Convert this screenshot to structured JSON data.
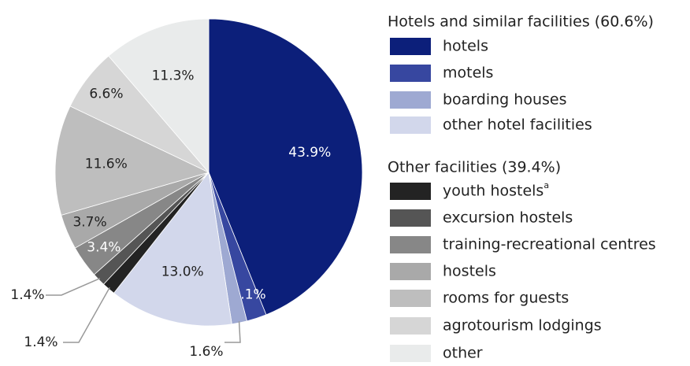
{
  "chart_data": {
    "type": "pie",
    "legend_groups": [
      "Hotels and similar facilities (60.6%)",
      "Other facilities (39.4%)"
    ],
    "categories": [
      "hotels",
      "motels",
      "boarding houses",
      "other hotel facilities",
      "youth hostels",
      "excursion hostels",
      "training-recreational centres",
      "hostels",
      "rooms for guests",
      "agrotourism lodgings",
      "other"
    ],
    "footnote_marks": [
      null,
      null,
      null,
      null,
      "a",
      null,
      null,
      null,
      null,
      null,
      null
    ],
    "values": [
      43.9,
      2.1,
      1.6,
      13.0,
      1.4,
      1.4,
      3.4,
      3.7,
      11.6,
      6.6,
      11.3
    ],
    "value_labels": [
      "43.9%",
      "2.1%",
      "1.6%",
      "13.0%",
      "1.4%",
      "1.4%",
      "3.4%",
      "3.7%",
      "11.6%",
      "6.6%",
      "11.3%"
    ],
    "colors": [
      "#0c1f7a",
      "#3747a0",
      "#9ea9d2",
      "#d2d7eb",
      "#232323",
      "#555555",
      "#878787",
      "#a9a9a9",
      "#bebebe",
      "#d6d6d6",
      "#e9ebeb"
    ]
  }
}
